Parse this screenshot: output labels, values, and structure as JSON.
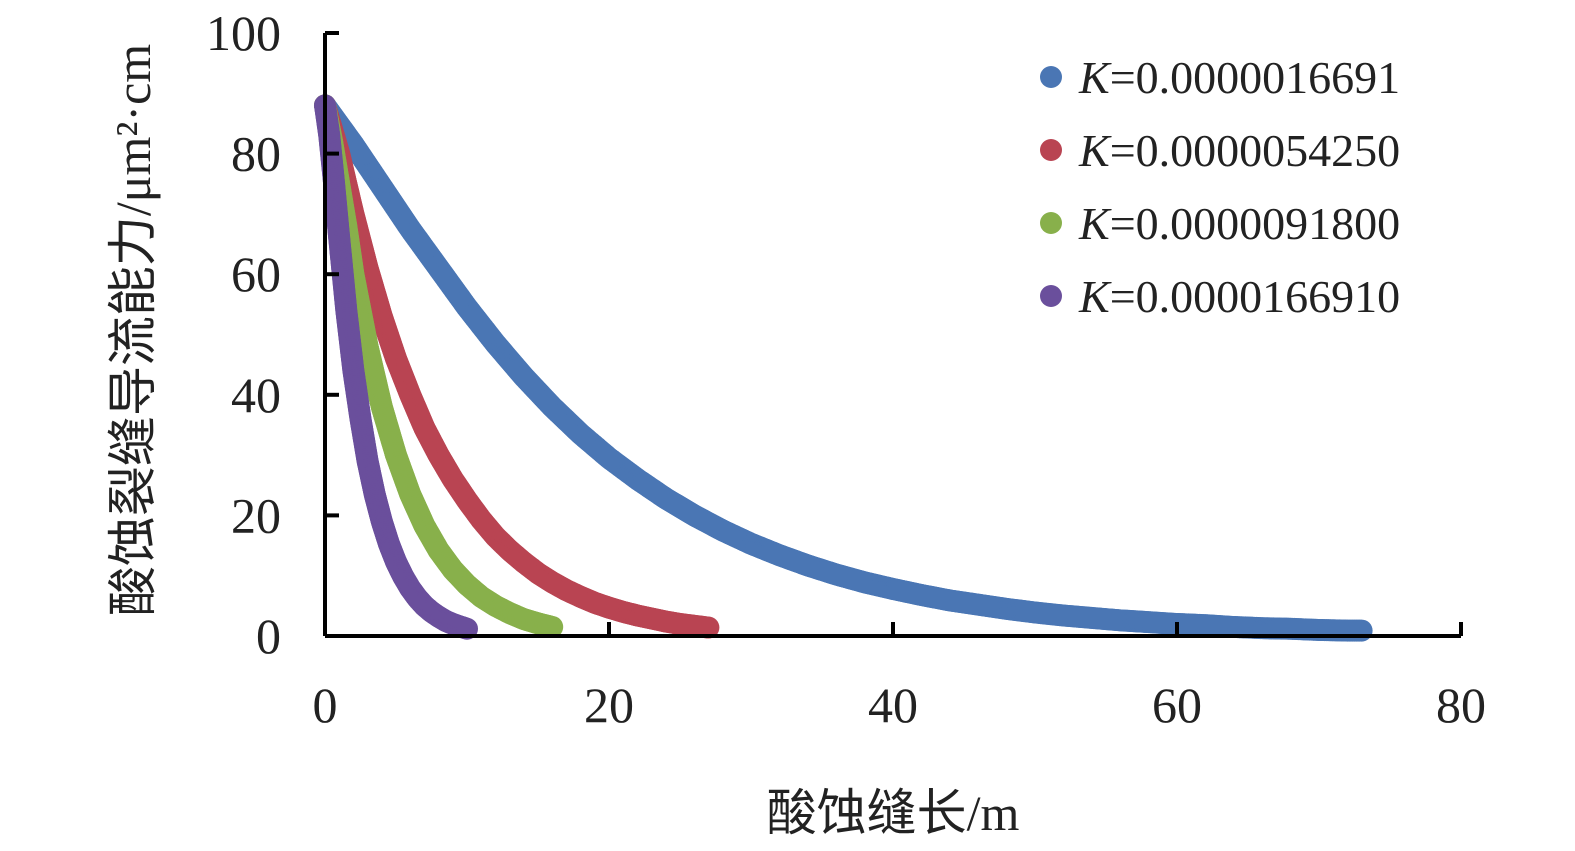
{
  "chart_data": {
    "type": "scatter",
    "title": "",
    "xlabel": "酸蚀缝长/m",
    "ylabel": "酸蚀裂缝导流能力/μm²·cm",
    "xlim": [
      0,
      80
    ],
    "ylim": [
      0,
      100
    ],
    "x_ticks": [
      "0",
      "20",
      "40",
      "60",
      "80"
    ],
    "y_ticks": [
      "0",
      "20",
      "40",
      "60",
      "80",
      "100"
    ],
    "grid": false,
    "legend_position": "top-right",
    "series": [
      {
        "name_prefix": "K",
        "name_suffix": "=0.0000016691",
        "color": "#4a76b4",
        "x": [
          0,
          2,
          4,
          6,
          8,
          10,
          12,
          14,
          16,
          18,
          20,
          22,
          24,
          26,
          28,
          30,
          32,
          34,
          36,
          38,
          40,
          42,
          44,
          46,
          48,
          50,
          52,
          54,
          56,
          58,
          60,
          62,
          64,
          66,
          68,
          70,
          72,
          73
        ],
        "y": [
          88,
          81.5,
          74.5,
          67.5,
          61,
          54.5,
          48.5,
          43,
          38,
          33.5,
          29.5,
          26,
          22.8,
          20,
          17.5,
          15.3,
          13.4,
          11.7,
          10.2,
          8.9,
          7.8,
          6.8,
          5.9,
          5.2,
          4.5,
          3.9,
          3.4,
          3.0,
          2.6,
          2.3,
          2.0,
          1.8,
          1.5,
          1.3,
          1.2,
          1.0,
          0.9,
          0.9
        ]
      },
      {
        "name_prefix": "K",
        "name_suffix": "=0.0000054250",
        "color": "#b94452",
        "x": [
          0,
          1,
          2,
          3,
          4,
          5,
          6,
          7,
          8,
          9,
          10,
          11,
          12,
          13,
          14,
          15,
          16,
          17,
          18,
          19,
          20,
          21,
          22,
          23,
          24,
          25,
          26,
          27
        ],
        "y": [
          88,
          80,
          70,
          61,
          53,
          46,
          40,
          34.5,
          30,
          26,
          22.5,
          19.3,
          16.5,
          14.2,
          12.2,
          10.4,
          8.9,
          7.6,
          6.5,
          5.5,
          4.7,
          4.0,
          3.4,
          2.9,
          2.4,
          2.0,
          1.7,
          1.4
        ]
      },
      {
        "name_prefix": "K",
        "name_suffix": "=0.0000091800",
        "color": "#88b04b",
        "x": [
          0,
          0.5,
          1,
          1.5,
          2,
          3,
          4,
          5,
          6,
          7,
          8,
          9,
          10,
          11,
          12,
          13,
          14,
          15,
          16
        ],
        "y": [
          88,
          82,
          75,
          68,
          60,
          48,
          38,
          30,
          23.5,
          18.3,
          14.2,
          11,
          8.5,
          6.5,
          5,
          3.8,
          2.8,
          2.1,
          1.5
        ]
      },
      {
        "name_prefix": "K",
        "name_suffix": "=0.0000166910",
        "color": "#6a4f9c",
        "x": [
          0,
          0.3,
          0.6,
          1,
          1.5,
          2,
          2.5,
          3,
          3.5,
          4,
          4.5,
          5,
          5.5,
          6,
          6.5,
          7,
          7.5,
          8,
          8.5,
          9,
          9.5,
          10
        ],
        "y": [
          88,
          83,
          76,
          66,
          54,
          44,
          36,
          29,
          23.5,
          19,
          15.3,
          12.3,
          9.9,
          7.9,
          6.3,
          5,
          4,
          3.2,
          2.5,
          2,
          1.6,
          1.2
        ]
      }
    ]
  }
}
